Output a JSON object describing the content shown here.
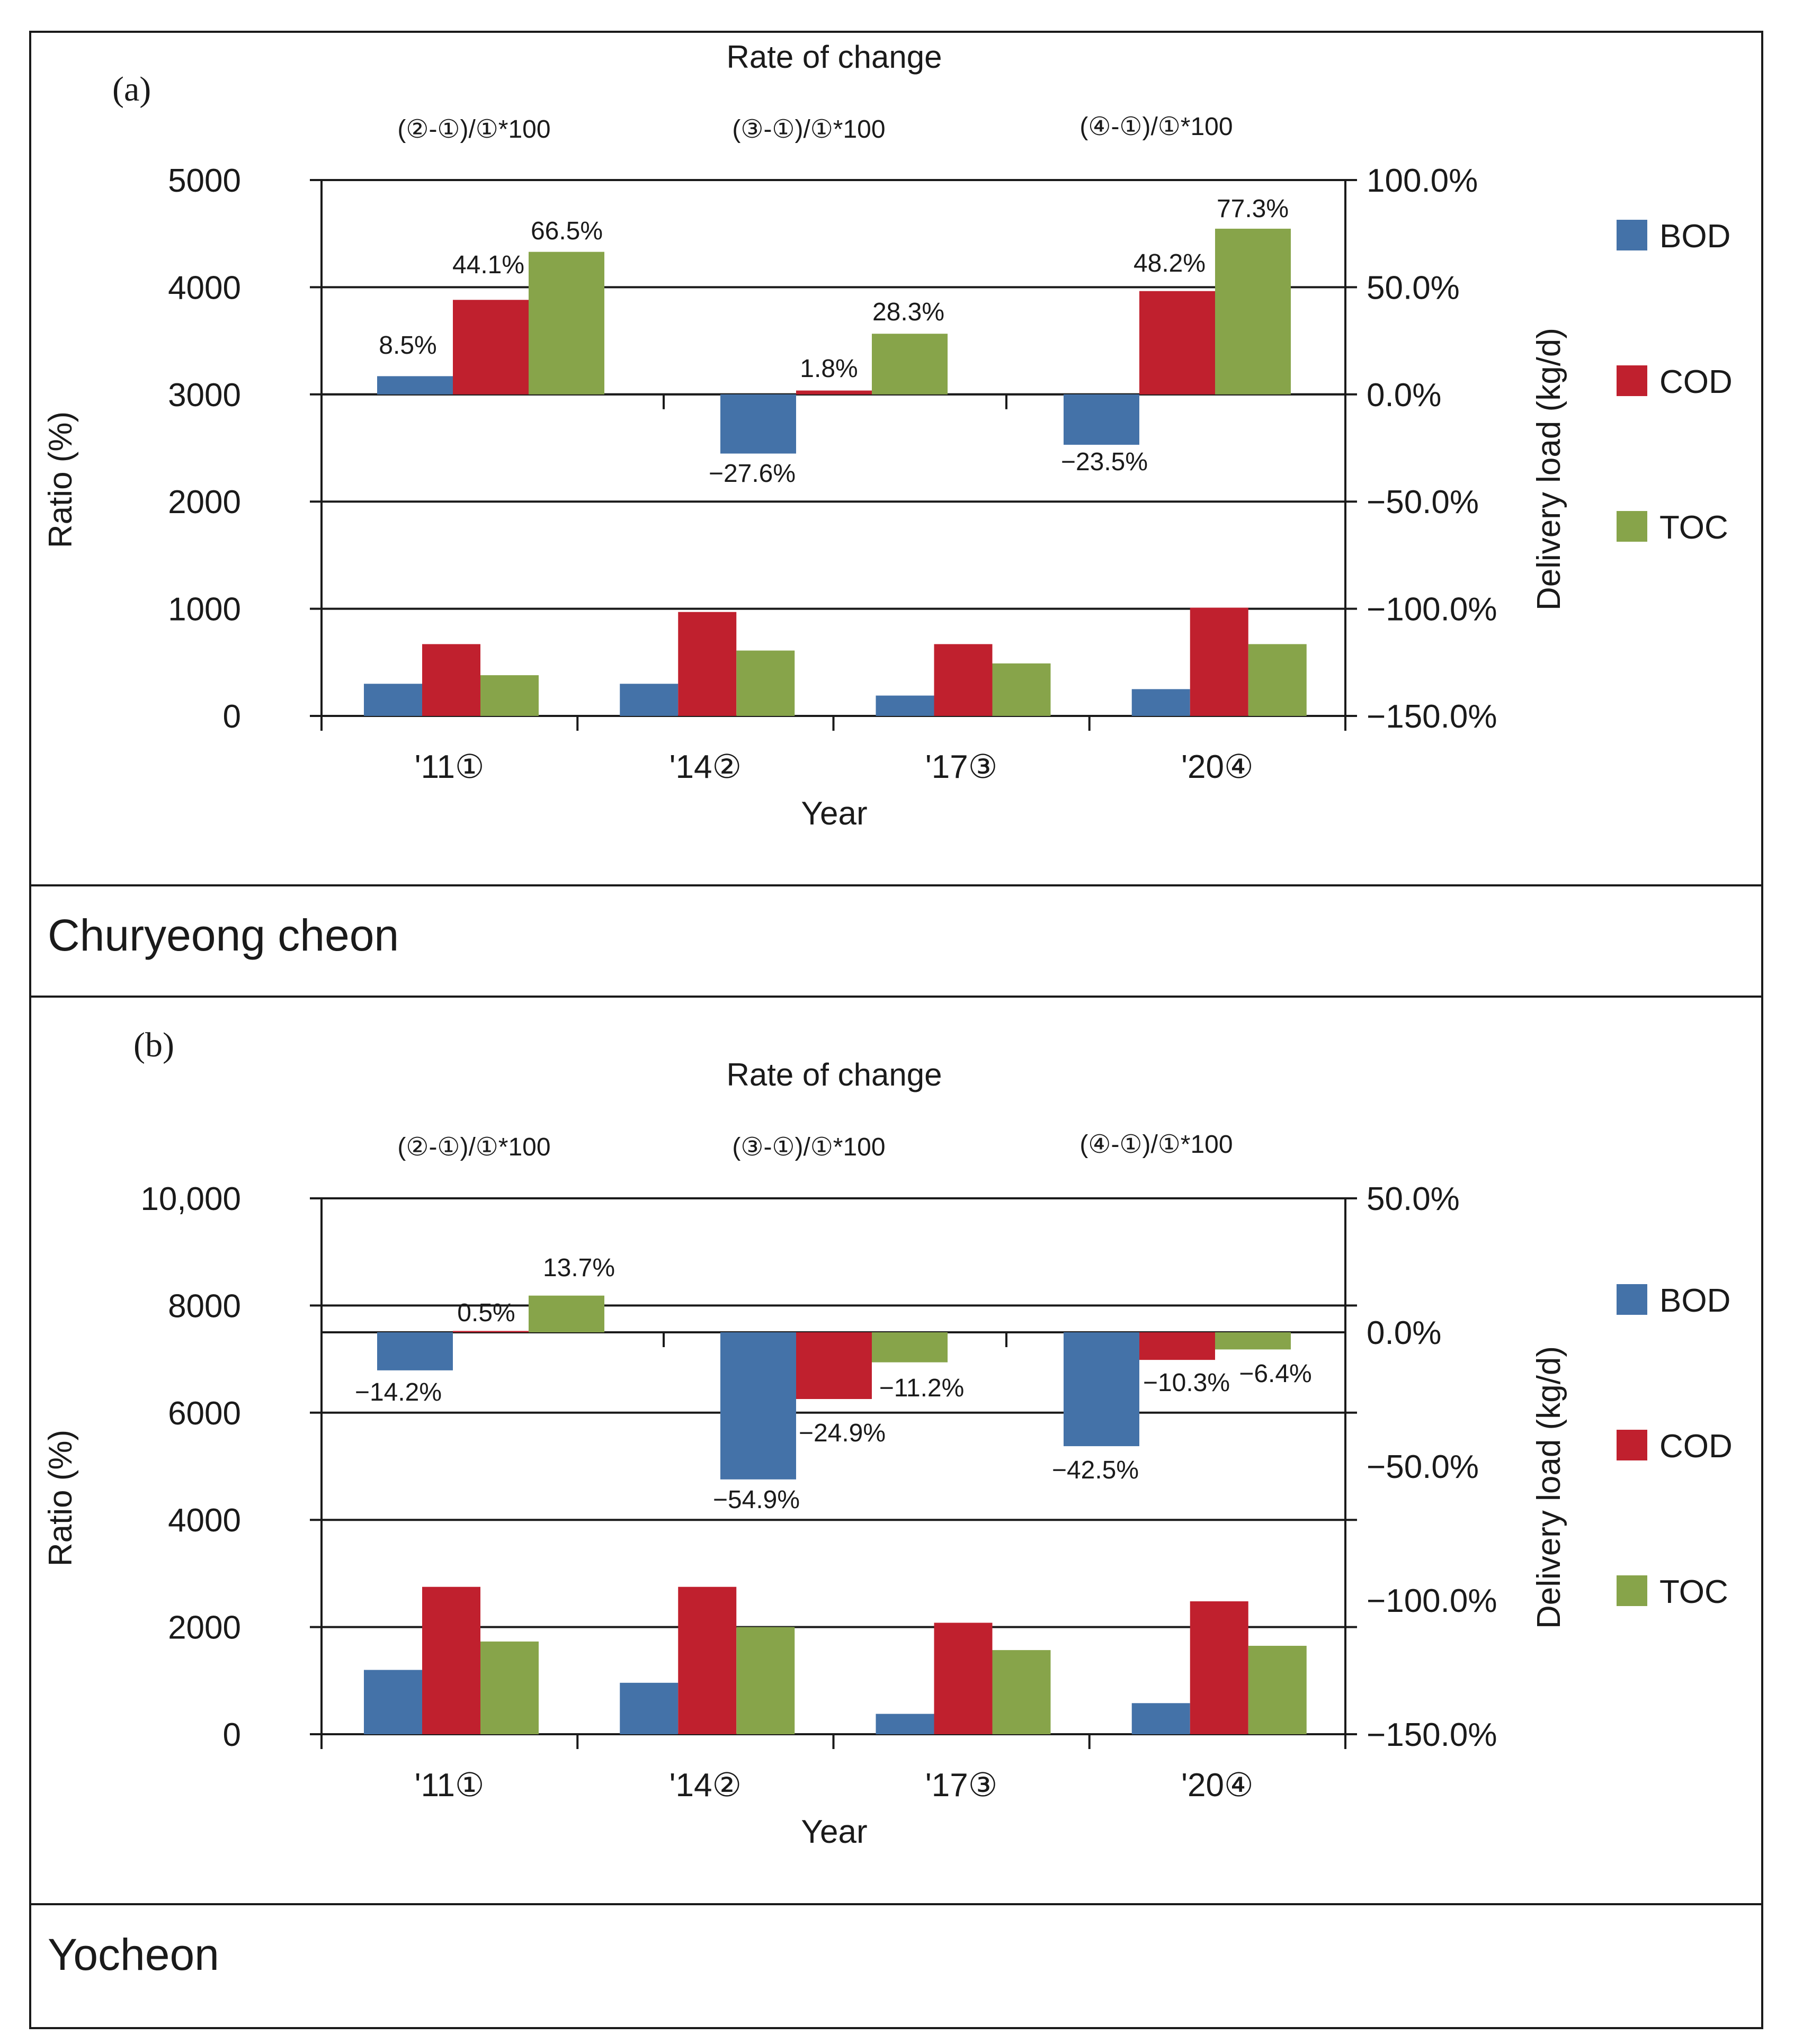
{
  "colors": {
    "BOD": "#4472a8",
    "COD": "#c0202e",
    "TOC": "#87a44a",
    "line": "#1a1a1a"
  },
  "legend": [
    "BOD",
    "COD",
    "TOC"
  ],
  "panels": [
    {
      "letter": "(a)",
      "name": "Churyeong cheon",
      "header": "Rate of change",
      "formulas": [
        "(②-①)/①*100",
        "(③-①)/①*100",
        "(④-①)/①*100"
      ]
    },
    {
      "letter": "(b)",
      "name": "Yocheon",
      "header": "Rate of change",
      "formulas": [
        "(②-①)/①*100",
        "(③-①)/①*100",
        "(④-①)/①*100"
      ]
    }
  ],
  "chart_data": [
    {
      "type": "bar",
      "title": "Churyeong cheon",
      "categories": [
        "'11①",
        "'14②",
        "'17③",
        "'20④"
      ],
      "xlabel": "Year",
      "ylabel": "Ratio (%)",
      "ylabel_right": "Delivery load (kg/d)",
      "left_ticks": [
        "0",
        "1000",
        "2000",
        "3000",
        "4000",
        "5000"
      ],
      "left_lim": [
        0,
        5000
      ],
      "right_ticks": [
        "−150.0%",
        "−100.0%",
        "−50.0%",
        "0.0%",
        "50.0%",
        "100.0%"
      ],
      "right_lim": [
        -150,
        100
      ],
      "load_series": [
        {
          "name": "BOD",
          "values": [
            300,
            300,
            190,
            250
          ]
        },
        {
          "name": "COD",
          "values": [
            670,
            970,
            670,
            1010
          ]
        },
        {
          "name": "TOC",
          "values": [
            380,
            610,
            490,
            670
          ]
        }
      ],
      "change_groups": [
        "(②-①)/①*100",
        "(③-①)/①*100",
        "(④-①)/①*100"
      ],
      "change_series": [
        {
          "name": "BOD",
          "values": [
            8.5,
            -27.6,
            -23.5
          ],
          "labels": [
            "8.5%",
            "−27.6%",
            "−23.5%"
          ]
        },
        {
          "name": "COD",
          "values": [
            44.1,
            1.8,
            48.2
          ],
          "labels": [
            "44.1%",
            "1.8%",
            "48.2%"
          ]
        },
        {
          "name": "TOC",
          "values": [
            66.5,
            28.3,
            77.3
          ],
          "labels": [
            "66.5%",
            "28.3%",
            "77.3%"
          ]
        }
      ],
      "legend_position": "right"
    },
    {
      "type": "bar",
      "title": "Yocheon",
      "categories": [
        "'11①",
        "'14②",
        "'17③",
        "'20④"
      ],
      "xlabel": "Year",
      "ylabel": "Ratio (%)",
      "ylabel_right": "Delivery load (kg/d)",
      "left_ticks": [
        "0",
        "2000",
        "4000",
        "6000",
        "8000",
        "10,000"
      ],
      "left_lim": [
        0,
        10000
      ],
      "right_ticks": [
        "−150.0%",
        "−100.0%",
        "−50.0%",
        "0.0%",
        "50.0%"
      ],
      "right_lim": [
        -150,
        50
      ],
      "load_series": [
        {
          "name": "BOD",
          "values": [
            1200,
            960,
            380,
            580
          ]
        },
        {
          "name": "COD",
          "values": [
            2750,
            2750,
            2080,
            2480
          ]
        },
        {
          "name": "TOC",
          "values": [
            1730,
            2000,
            1570,
            1650
          ]
        }
      ],
      "change_groups": [
        "(②-①)/①*100",
        "(③-①)/①*100",
        "(④-①)/①*100"
      ],
      "change_series": [
        {
          "name": "BOD",
          "values": [
            -14.2,
            -54.9,
            -42.5
          ],
          "labels": [
            "−14.2%",
            "−54.9%",
            "−42.5%"
          ]
        },
        {
          "name": "COD",
          "values": [
            0.5,
            -24.9,
            -10.3
          ],
          "labels": [
            "0.5%",
            "−24.9%",
            "−10.3%"
          ]
        },
        {
          "name": "TOC",
          "values": [
            13.7,
            -11.2,
            -6.4
          ],
          "labels": [
            "13.7%",
            "−11.2%",
            "−6.4%"
          ]
        }
      ],
      "legend_position": "right"
    }
  ]
}
